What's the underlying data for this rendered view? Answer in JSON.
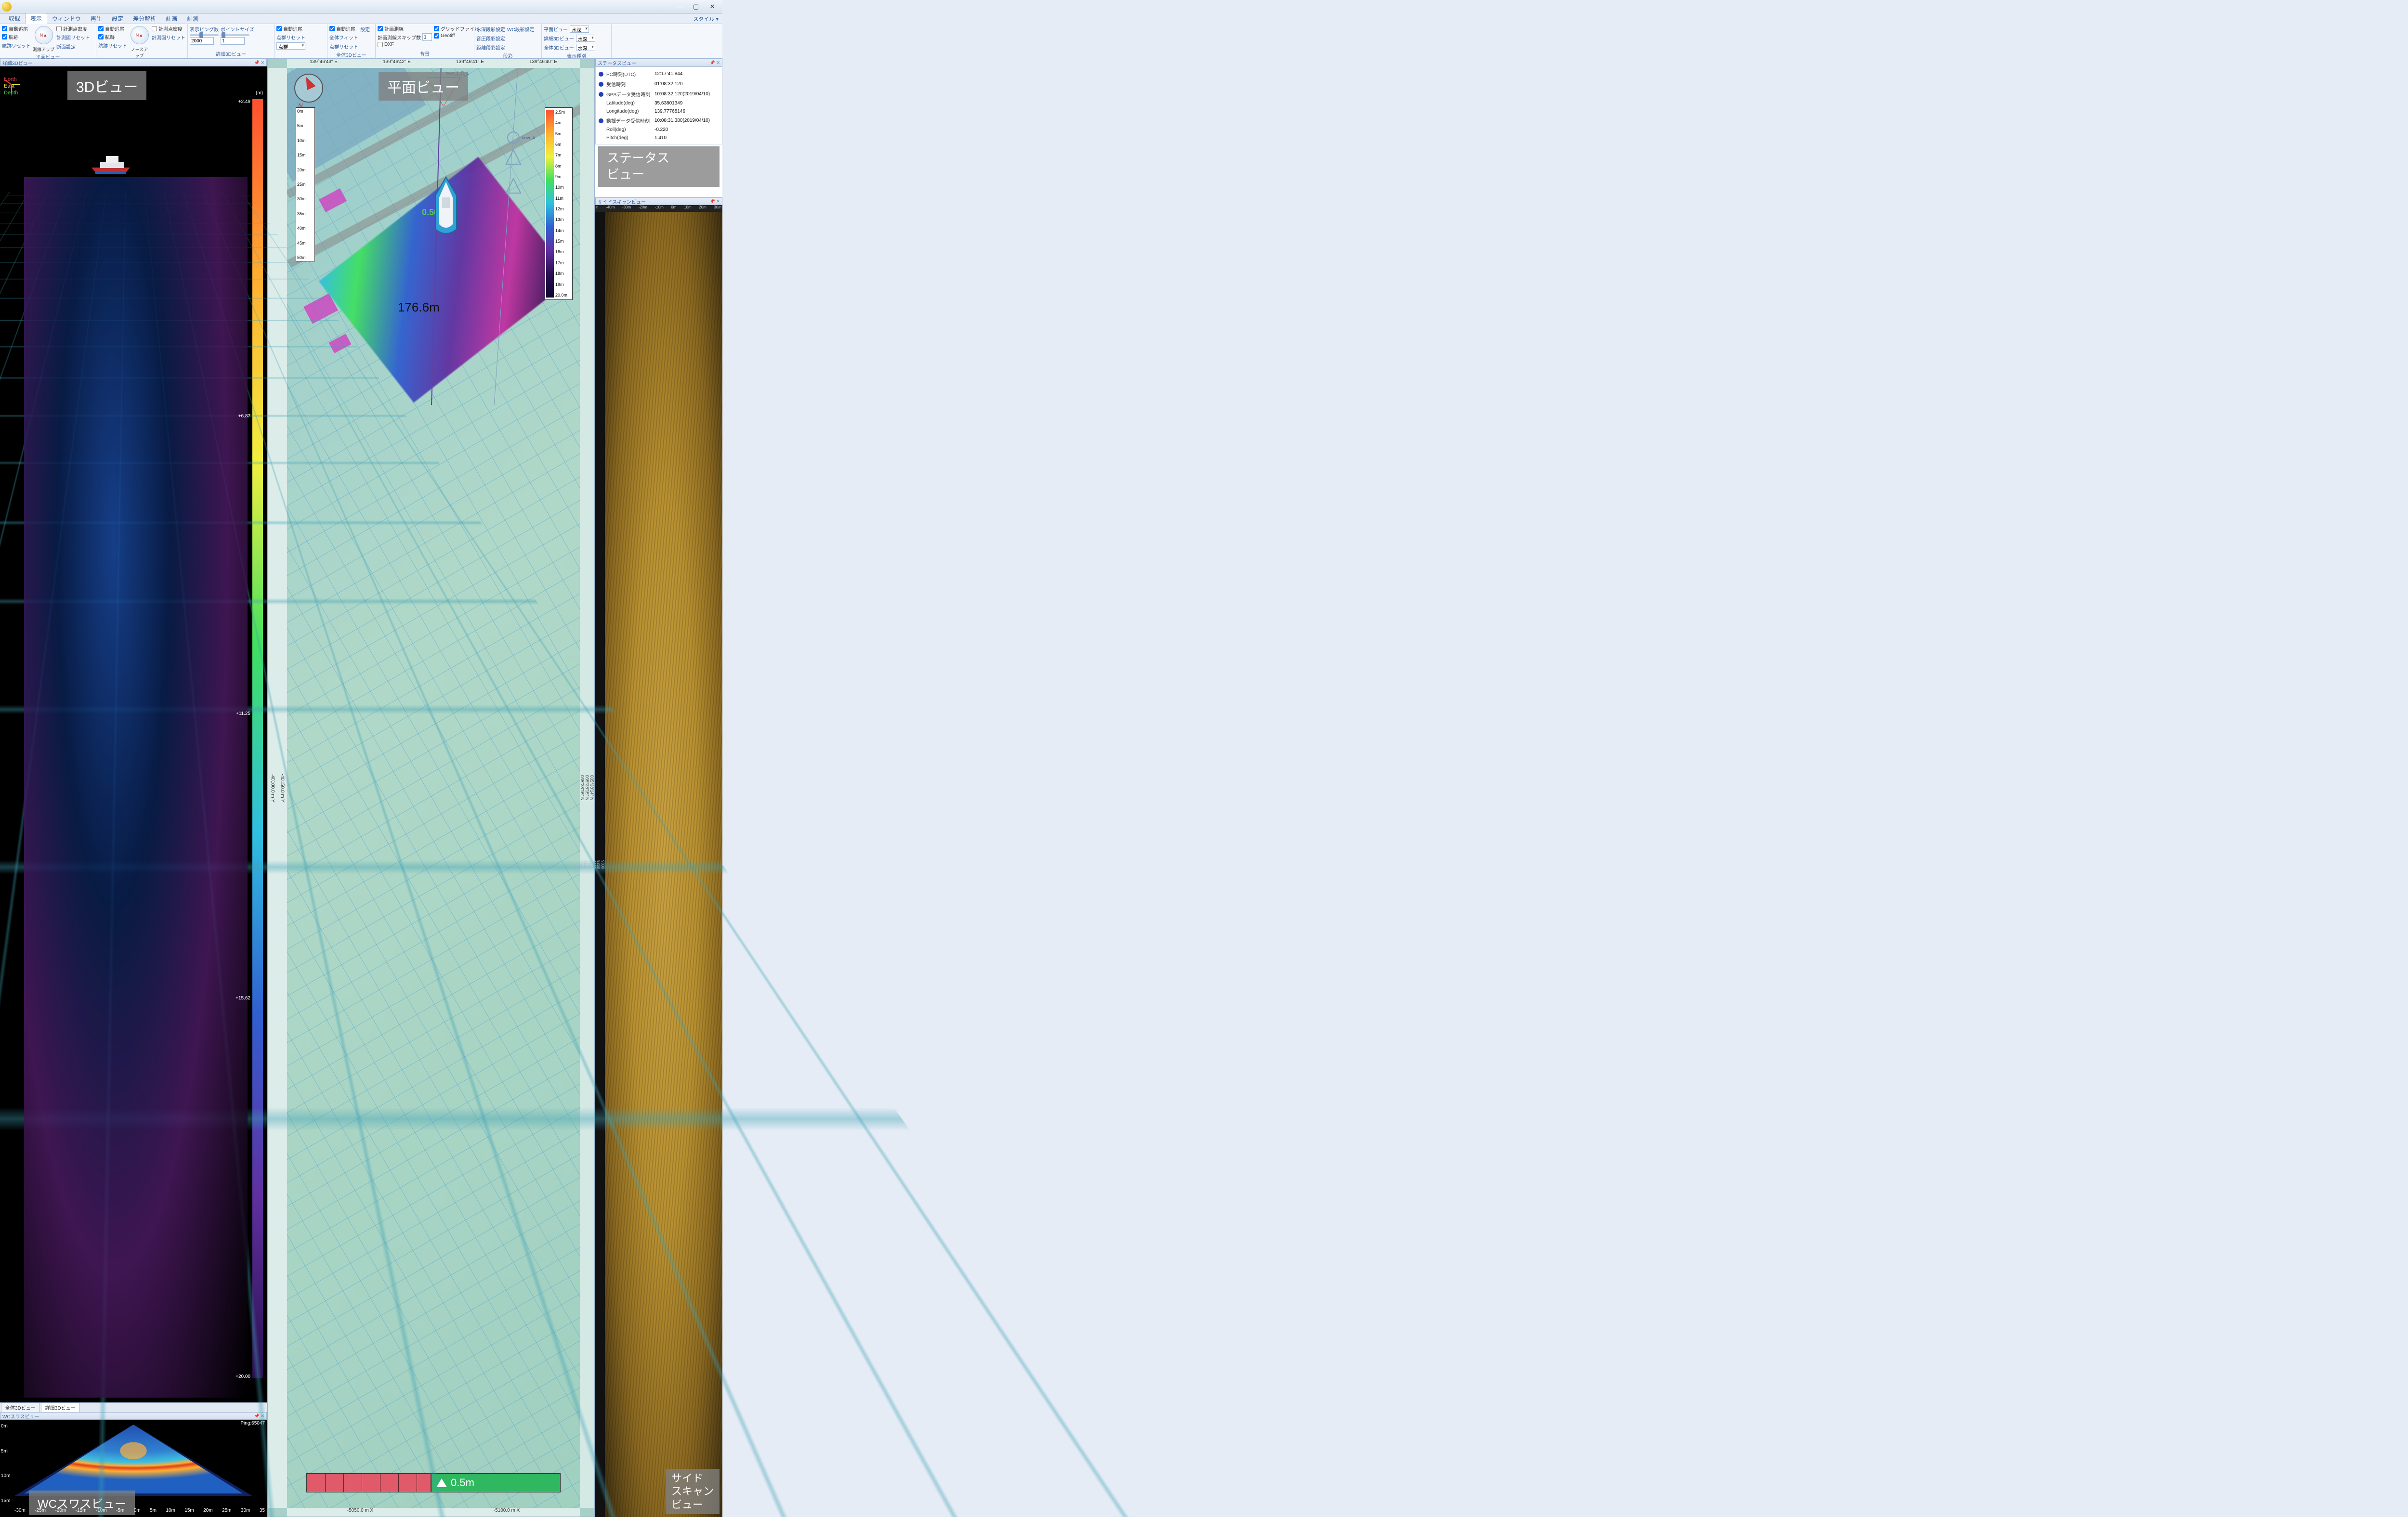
{
  "window": {
    "minimize": "—",
    "maximize": "▢",
    "close": "✕"
  },
  "menu": {
    "items": [
      "収録",
      "表示",
      "ウィンドウ",
      "再生",
      "設定",
      "差分解析",
      "計画",
      "計測"
    ],
    "active_index": 1,
    "style_label": "スタイル ▾"
  },
  "ribbon": {
    "g1": {
      "label": "平面ビュー",
      "c1": [
        "自動追尾",
        "航跡",
        "航跡リセット"
      ],
      "icon_label": "測線アップ",
      "c2": [
        "計測点密度",
        "計測図リセット",
        "断面設定"
      ]
    },
    "g2": {
      "label": "操船ビュー",
      "c1": [
        "自動追尾",
        "航跡",
        "航跡リセット"
      ],
      "icon_label": "ノースアップ",
      "c2": [
        "計測点密度",
        "計測図リセット"
      ]
    },
    "g3": {
      "label": "詳細3Dビュー",
      "ping_label": "表示ピング数",
      "ping_val": "2000",
      "pt_label": "ポイントサイズ",
      "pt_val": "1"
    },
    "g4": {
      "auto": "自動追尾",
      "reset": "点群リセット",
      "dd": "点群"
    },
    "g5": {
      "label": "全体3Dビュー",
      "auto": "自動追尾",
      "fit": "全体フィット",
      "reset": "点群リセット",
      "set": "設定"
    },
    "g6": {
      "label": "背景",
      "line": "計画測線",
      "skip": "計画測線スキップ数",
      "skip_val": "1",
      "dxf": "DXF",
      "grid": "グリッドファイル",
      "geotiff": "Geotiff"
    },
    "g7": {
      "label": "段彩",
      "items": [
        "水深段彩設定",
        "音圧段彩設定",
        "距離段彩設定"
      ],
      "wc": "WC段彩設定"
    },
    "g8": {
      "label": "表示種別",
      "rows": [
        [
          "平面ビュー",
          "水深"
        ],
        [
          "詳細3Dビュー",
          "水深"
        ],
        [
          "全体3Dビュー",
          "水深"
        ]
      ]
    }
  },
  "view3d": {
    "header": "詳細3Dビュー",
    "overlay": "3Dビュー",
    "axes": {
      "north": "North",
      "east": "East",
      "depth": "Depth"
    },
    "legend": {
      "unit": "(m)",
      "ticks": [
        "+2.49",
        "+6.87",
        "+11.25",
        "+15.62",
        "+20.00"
      ]
    },
    "boat_colors": {
      "hull": "#c03030",
      "deck": "#e0e6ec",
      "cabin": "#f0f0f0",
      "waterline": "#2060c0"
    },
    "tabs": [
      "全体3Dビュー",
      "詳細3Dビュー"
    ],
    "active_tab": 1
  },
  "wc": {
    "header": "WCスワスビュー",
    "overlay": "WCスワスビュー",
    "ping": "Ping:65047",
    "y": [
      "0m",
      "5m",
      "10m",
      "15m"
    ],
    "x": [
      "-30m",
      "-25m",
      "-20m",
      "-15m",
      "-10m",
      "-5m",
      "0m",
      "5m",
      "10m",
      "15m",
      "20m",
      "25m",
      "30m",
      "35"
    ]
  },
  "plan": {
    "overlay": "平面ビュー",
    "top": [
      "139°46'43\" E",
      "139°46'42\" E",
      "139°46'41\" E",
      "139°46'40\" E"
    ],
    "left": [
      "-40150.0 m Y",
      "-40100.0 m Y"
    ],
    "right": [
      "035°38'14\" N",
      "035°38'15\" N",
      "035°38'16\" N",
      "035°38'17\" N"
    ],
    "bottom": [
      "-5050.0 m X",
      "-5100.0 m X"
    ],
    "ruler": [
      "0m",
      "5m",
      "10m",
      "15m",
      "20m",
      "25m",
      "30m",
      "35m",
      "40m",
      "45m",
      "50m"
    ],
    "legend": [
      "2.5m",
      "4m",
      "5m",
      "6m",
      "7m",
      "8m",
      "9m",
      "10m",
      "11m",
      "12m",
      "13m",
      "14m",
      "15m",
      "16m",
      "17m",
      "18m",
      "19m",
      "20.0m"
    ],
    "distance": "176.6m",
    "bar_deviation": "0.5m",
    "green_dist": "0.50",
    "labels": {
      "new1": "new_1_R_1",
      "new4": "new_4"
    },
    "boat_colors": {
      "hull": "#30a0d8",
      "deck": "#f0f4f8"
    }
  },
  "status": {
    "header": "ステータスビュー",
    "overlay1": "ステータス",
    "overlay2": "ビュー",
    "rows": [
      {
        "dot": true,
        "lbl": "PC時刻(UTC)",
        "val": "12:17:41.844"
      },
      {
        "dot": true,
        "lbl": "受信時刻",
        "val": "01:08:32.120"
      },
      {
        "dot": true,
        "lbl": "GPSデータ受信時刻",
        "val": "10:08:32.120(2019/04/10)"
      },
      {
        "dot": false,
        "lbl": "Latitude(deg)",
        "val": "35.63801349"
      },
      {
        "dot": false,
        "lbl": "Longitude(deg)",
        "val": "139.77768146"
      },
      {
        "dot": true,
        "lbl": "動揺データ受信時刻",
        "val": "10:08:31.380(2019/04/10)"
      },
      {
        "dot": false,
        "lbl": "Roll(deg)",
        "val": "-0.220"
      },
      {
        "dot": false,
        "lbl": "Pitch(deg)",
        "val": "1.410"
      }
    ]
  },
  "scan": {
    "header": "サイドスキャンビュー",
    "overlay1": "サイド",
    "overlay2": "スキャン",
    "overlay3": "ビュー",
    "top": [
      "n",
      "-40m",
      "-30m",
      "-20m",
      "-10m",
      "0m",
      "10m",
      "20m",
      "30m"
    ],
    "left": [
      "9300",
      "9250",
      "9200",
      "9150",
      "9100",
      "9050",
      "9000",
      "8950"
    ]
  }
}
